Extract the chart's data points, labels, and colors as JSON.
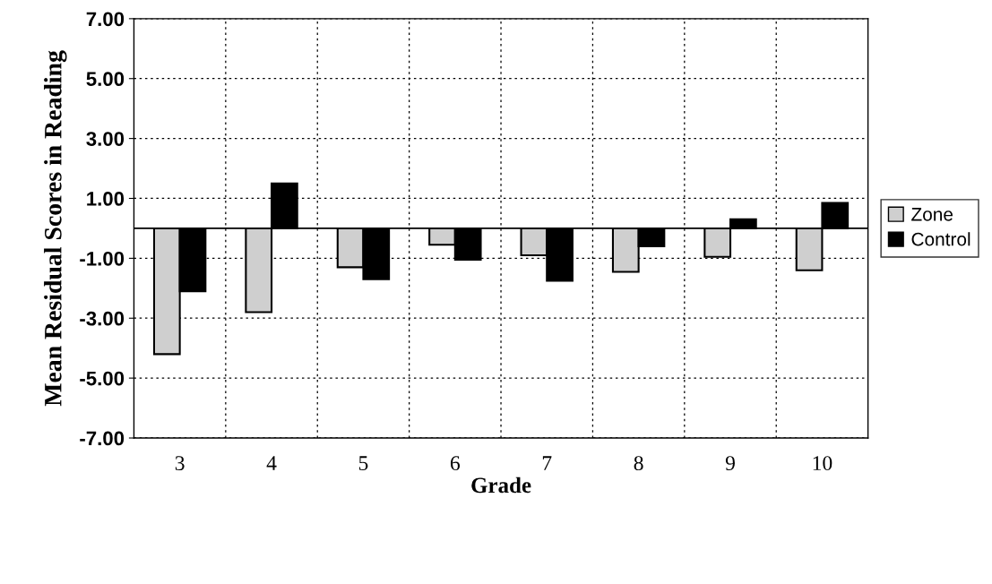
{
  "chart_data": {
    "type": "bar",
    "xlabel": "Grade",
    "ylabel": "Mean Residual Scores in Reading",
    "categories": [
      "3",
      "4",
      "5",
      "6",
      "7",
      "8",
      "9",
      "10"
    ],
    "series": [
      {
        "name": "Zone",
        "color": "#cfcfcf",
        "values": [
          -4.2,
          -2.8,
          -1.3,
          -0.55,
          -0.9,
          -1.45,
          -0.95,
          -1.4
        ]
      },
      {
        "name": "Control",
        "color": "#000000",
        "values": [
          -2.1,
          1.5,
          -1.7,
          -1.05,
          -1.75,
          -0.6,
          0.3,
          0.85
        ]
      }
    ],
    "ylim": [
      -7,
      7
    ],
    "yticks": [
      {
        "value": -7,
        "label": "-7.00"
      },
      {
        "value": -5,
        "label": "-5.00"
      },
      {
        "value": -3,
        "label": "-3.00"
      },
      {
        "value": -1,
        "label": "-1.00"
      },
      {
        "value": 1,
        "label": "1.00"
      },
      {
        "value": 3,
        "label": "3.00"
      },
      {
        "value": 5,
        "label": "5.00"
      },
      {
        "value": 7,
        "label": "7.00"
      }
    ],
    "ref_lines": [
      {
        "axis": "y",
        "value": 0,
        "label": null,
        "color": "#000000"
      }
    ],
    "grid": true,
    "legend": "right"
  }
}
